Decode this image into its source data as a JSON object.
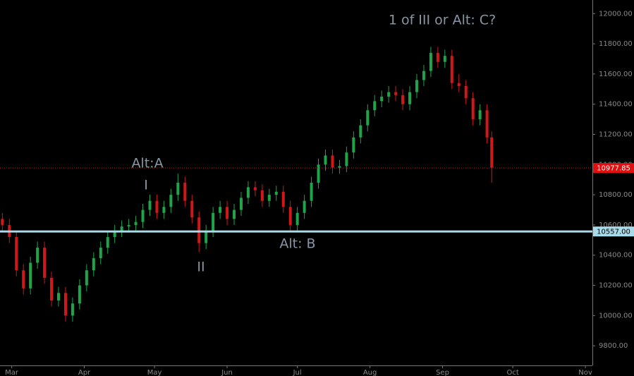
{
  "chart_data": {
    "type": "candlestick",
    "x": [
      -4,
      -1,
      2,
      5,
      8,
      11,
      14,
      17,
      20,
      23,
      26,
      29,
      32,
      35,
      38,
      41,
      44,
      47,
      50,
      53,
      56,
      59,
      62,
      65,
      68,
      71,
      74,
      77,
      80,
      83,
      86,
      89,
      92,
      95,
      98,
      101,
      104,
      107,
      110,
      113,
      116,
      119,
      122,
      125,
      128,
      131,
      134,
      137,
      140,
      143,
      146,
      149,
      152,
      155,
      158,
      161,
      164,
      167,
      170,
      173,
      176,
      179,
      182,
      185,
      188,
      191,
      194,
      197,
      200,
      203,
      205
    ],
    "open": [
      10640,
      10600,
      10520,
      10300,
      10180,
      10350,
      10450,
      10250,
      10100,
      10150,
      10000,
      10080,
      10200,
      10300,
      10380,
      10450,
      10520,
      10560,
      10590,
      10600,
      10620,
      10700,
      10760,
      10680,
      10720,
      10800,
      10880,
      10760,
      10650,
      10480,
      10560,
      10680,
      10720,
      10640,
      10700,
      10780,
      10850,
      10830,
      10760,
      10800,
      10820,
      10720,
      10600,
      10680,
      10760,
      10880,
      11000,
      11060,
      10980,
      10990,
      11080,
      11180,
      11260,
      11360,
      11420,
      11450,
      11480,
      11460,
      11400,
      11480,
      11560,
      11620,
      11740,
      11680,
      11720,
      11540,
      11520,
      11440,
      11300,
      11360,
      11180
    ],
    "high": [
      10680,
      10640,
      10560,
      10340,
      10390,
      10490,
      10490,
      10290,
      10190,
      10190,
      10120,
      10240,
      10340,
      10420,
      10490,
      10560,
      10600,
      10630,
      10640,
      10660,
      10740,
      10800,
      10800,
      10760,
      10840,
      10940,
      10920,
      10800,
      10690,
      10600,
      10720,
      10760,
      10760,
      10740,
      10820,
      10890,
      10890,
      10870,
      10840,
      10860,
      10860,
      10760,
      10720,
      10800,
      10920,
      11040,
      11100,
      11100,
      11030,
      11120,
      11220,
      11300,
      11400,
      11460,
      11490,
      11520,
      11520,
      11500,
      11520,
      11600,
      11660,
      11780,
      11780,
      11760,
      11760,
      11600,
      11560,
      11480,
      11400,
      11400,
      11220
    ],
    "low": [
      10560,
      10480,
      10260,
      10140,
      10140,
      10310,
      10210,
      10060,
      10060,
      9960,
      9960,
      10040,
      10160,
      10260,
      10340,
      10410,
      10480,
      10520,
      10550,
      10560,
      10580,
      10660,
      10640,
      10640,
      10680,
      10760,
      10720,
      10610,
      10420,
      10440,
      10520,
      10640,
      10600,
      10600,
      10660,
      10740,
      10790,
      10720,
      10720,
      10760,
      10680,
      10560,
      10560,
      10640,
      10720,
      10840,
      10960,
      10940,
      10940,
      10950,
      11040,
      11140,
      11220,
      11320,
      11380,
      11410,
      11420,
      11360,
      11360,
      11440,
      11520,
      11580,
      11640,
      11640,
      11500,
      11480,
      11400,
      11260,
      11260,
      11140,
      10880
    ],
    "close": [
      10600,
      10520,
      10300,
      10180,
      10350,
      10450,
      10250,
      10100,
      10150,
      10000,
      10080,
      10200,
      10300,
      10380,
      10450,
      10520,
      10560,
      10590,
      10600,
      10620,
      10700,
      10760,
      10680,
      10720,
      10800,
      10880,
      10760,
      10650,
      10480,
      10560,
      10680,
      10720,
      10640,
      10700,
      10780,
      10850,
      10830,
      10760,
      10800,
      10820,
      10720,
      10600,
      10680,
      10760,
      10880,
      11000,
      11060,
      10980,
      10990,
      11080,
      11180,
      11260,
      11360,
      11420,
      11450,
      11480,
      11460,
      11400,
      11480,
      11560,
      11620,
      11740,
      11680,
      11720,
      11540,
      11520,
      11440,
      11300,
      11360,
      11180,
      10980
    ],
    "up_color": "#1fa44a",
    "down_color": "#d01818",
    "xlim": [
      -5,
      248
    ],
    "xticks": [
      {
        "value": 0,
        "label": "Mar"
      },
      {
        "value": 31,
        "label": "Apr"
      },
      {
        "value": 61,
        "label": "May"
      },
      {
        "value": 92,
        "label": "Jun"
      },
      {
        "value": 122,
        "label": "Jul"
      },
      {
        "value": 153,
        "label": "Aug"
      },
      {
        "value": 184,
        "label": "Sep"
      },
      {
        "value": 214,
        "label": "Oct"
      },
      {
        "value": 245,
        "label": "Nov"
      }
    ],
    "ylim": [
      9670,
      12090
    ],
    "yticks": [
      {
        "value": 9800,
        "label": "9800.00"
      },
      {
        "value": 10000,
        "label": "10000.00"
      },
      {
        "value": 10200,
        "label": "10200.00"
      },
      {
        "value": 10400,
        "label": "10400.00"
      },
      {
        "value": 10600,
        "label": "10600.00"
      },
      {
        "value": 10800,
        "label": "10800.00"
      },
      {
        "value": 11000,
        "label": "11000.00"
      },
      {
        "value": 11200,
        "label": "11200.00"
      },
      {
        "value": 11400,
        "label": "11400.00"
      },
      {
        "value": 11600,
        "label": "11600.00"
      },
      {
        "value": 11800,
        "label": "11800.00"
      },
      {
        "value": 12000,
        "label": "12000.00"
      }
    ],
    "levels": [
      {
        "value": 10977.85,
        "label": "10977.85",
        "color": "#e01010",
        "style": "dotted"
      },
      {
        "value": 10557,
        "label": "10557.00",
        "color": "#a8dbe9",
        "style": "solid"
      }
    ],
    "annotations": [
      "1 of III or Alt: C?",
      "Alt:A",
      "I",
      "II",
      "Alt: B"
    ]
  }
}
